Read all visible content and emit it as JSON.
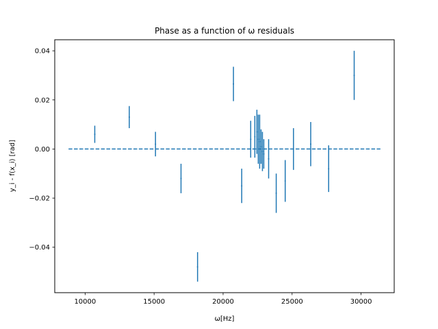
{
  "chart_data": {
    "type": "scatter",
    "title": "Phase as a function of ω residuals",
    "xlabel": "ω[Hz]",
    "ylabel": "y_i - f(x_i) [rad]",
    "xlim": [
      7800,
      32400
    ],
    "ylim": [
      -0.0585,
      0.0445
    ],
    "xticks": [
      10000,
      15000,
      20000,
      25000,
      30000
    ],
    "xtick_labels": [
      "10000",
      "15000",
      "20000",
      "25000",
      "30000"
    ],
    "yticks": [
      -0.04,
      -0.02,
      0.0,
      0.02,
      0.04
    ],
    "ytick_labels": [
      "−0.04",
      "−0.02",
      "0.00",
      "0.02",
      "0.04"
    ],
    "grid": false,
    "color": "#1f77b4",
    "reference_line": {
      "x": [
        8800,
        31400
      ],
      "y": 0.0,
      "style": "dashed"
    },
    "series": [
      {
        "points": [
          {
            "x": 10700,
            "y": 0.006,
            "err": 0.0035
          },
          {
            "x": 13200,
            "y": 0.013,
            "err": 0.0045
          },
          {
            "x": 15100,
            "y": 0.002,
            "err": 0.005
          },
          {
            "x": 16950,
            "y": -0.012,
            "err": 0.006
          },
          {
            "x": 18150,
            "y": -0.048,
            "err": 0.006
          },
          {
            "x": 20750,
            "y": 0.0265,
            "err": 0.007
          },
          {
            "x": 21350,
            "y": -0.015,
            "err": 0.007
          },
          {
            "x": 22000,
            "y": 0.004,
            "err": 0.0075
          },
          {
            "x": 22300,
            "y": 0.005,
            "err": 0.0085
          },
          {
            "x": 22450,
            "y": 0.007,
            "err": 0.009
          },
          {
            "x": 22550,
            "y": 0.004,
            "err": 0.01
          },
          {
            "x": 22650,
            "y": 0.003,
            "err": 0.011
          },
          {
            "x": 22750,
            "y": 0.001,
            "err": 0.007
          },
          {
            "x": 22850,
            "y": -0.001,
            "err": 0.008
          },
          {
            "x": 22950,
            "y": -0.002,
            "err": 0.006
          },
          {
            "x": 23300,
            "y": -0.004,
            "err": 0.008
          },
          {
            "x": 23850,
            "y": -0.018,
            "err": 0.008
          },
          {
            "x": 24500,
            "y": -0.013,
            "err": 0.0085
          },
          {
            "x": 25100,
            "y": 0.0,
            "err": 0.0085
          },
          {
            "x": 26350,
            "y": 0.002,
            "err": 0.009
          },
          {
            "x": 27650,
            "y": -0.008,
            "err": 0.0095
          },
          {
            "x": 29500,
            "y": 0.03,
            "err": 0.01
          }
        ]
      }
    ]
  }
}
